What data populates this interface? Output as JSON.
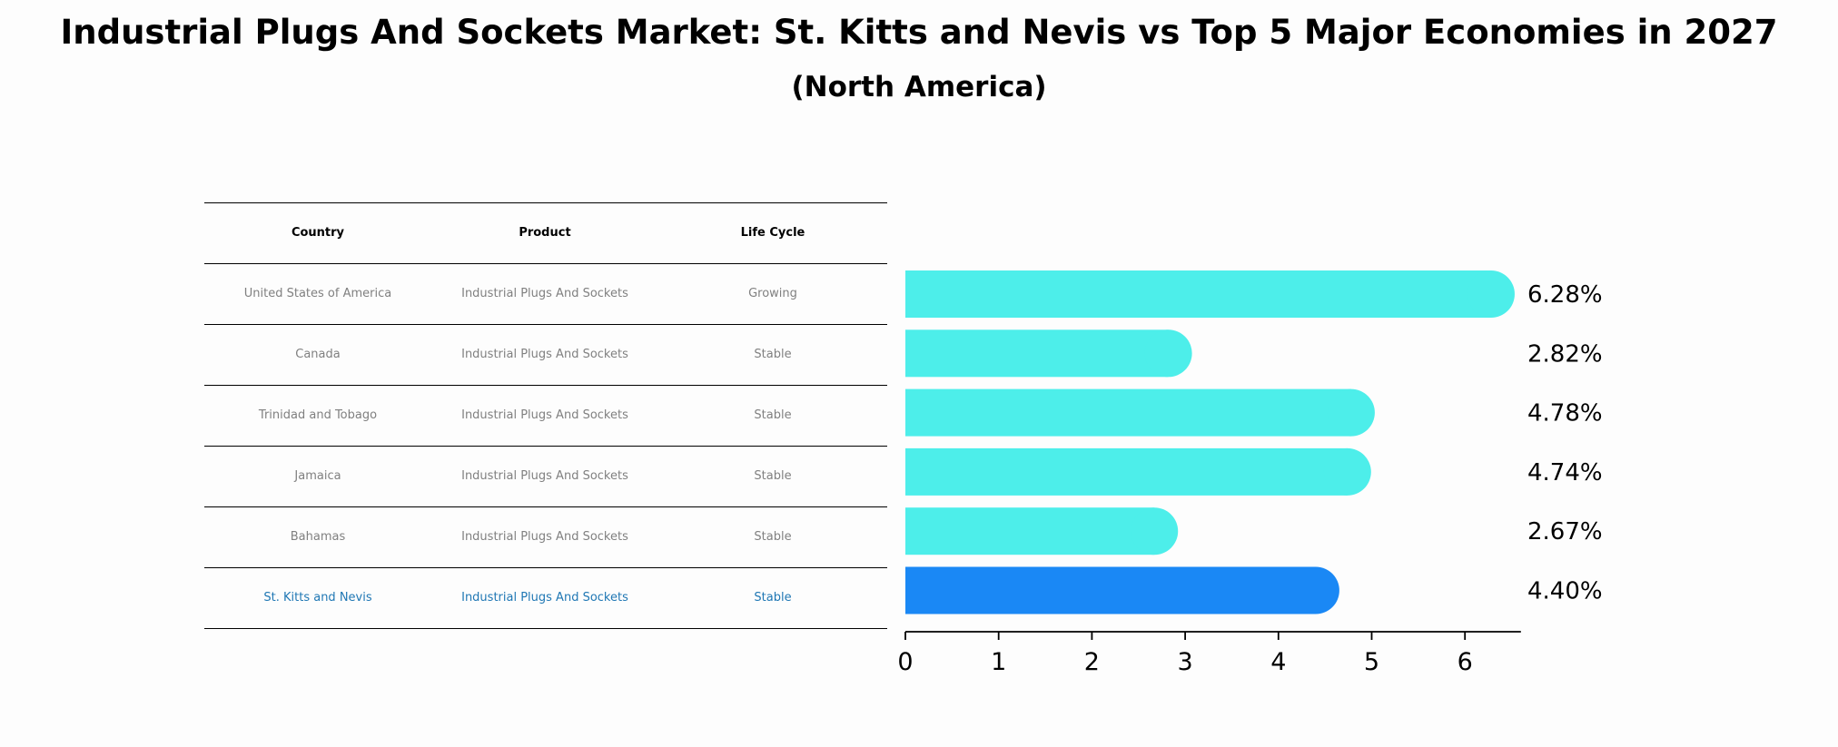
{
  "title": "Industrial Plugs And Sockets Market: St. Kitts and Nevis vs Top 5 Major Economies in 2027",
  "subtitle": "(North America)",
  "table": {
    "headers": [
      "Country",
      "Product",
      "Life Cycle"
    ],
    "rows": [
      {
        "country": "United States of America",
        "product": "Industrial Plugs And Sockets",
        "life_cycle": "Growing"
      },
      {
        "country": "Canada",
        "product": "Industrial Plugs And Sockets",
        "life_cycle": "Stable"
      },
      {
        "country": "Trinidad and Tobago",
        "product": "Industrial Plugs And Sockets",
        "life_cycle": "Stable"
      },
      {
        "country": "Jamaica",
        "product": "Industrial Plugs And Sockets",
        "life_cycle": "Stable"
      },
      {
        "country": "Bahamas",
        "product": "Industrial Plugs And Sockets",
        "life_cycle": "Stable"
      },
      {
        "country": "St. Kitts and Nevis",
        "product": "Industrial Plugs And Sockets",
        "life_cycle": "Stable"
      }
    ]
  },
  "colors": {
    "bar": "#4deeea",
    "highlight_bar": "#1a88f5",
    "highlight_text": "#1f77b4"
  },
  "chart_data": {
    "type": "bar",
    "orientation": "horizontal",
    "categories": [
      "United States of America",
      "Canada",
      "Trinidad and Tobago",
      "Jamaica",
      "Bahamas",
      "St. Kitts and Nevis"
    ],
    "values": [
      6.28,
      2.82,
      4.78,
      4.74,
      2.67,
      4.4
    ],
    "value_labels": [
      "6.28%",
      "2.82%",
      "4.78%",
      "4.74%",
      "2.67%",
      "4.40%"
    ],
    "highlight_index": 5,
    "xlim": [
      0,
      6.6
    ],
    "xticks": [
      0,
      1,
      2,
      3,
      4,
      5,
      6
    ],
    "xlabel": "",
    "ylabel": ""
  }
}
